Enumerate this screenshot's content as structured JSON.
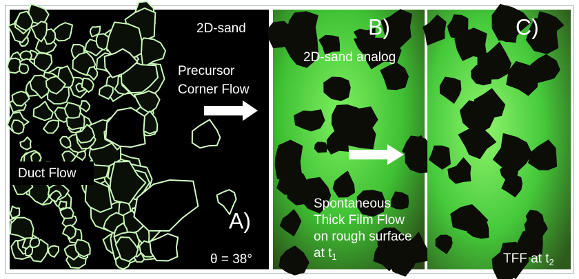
{
  "panels": [
    {
      "label": "A)",
      "title": "2D-sand",
      "annotation_lines": [
        "Precursor",
        "Corner Flow"
      ],
      "inset_label": "Duct Flow",
      "angle": "θ = 38°"
    },
    {
      "label": "B)",
      "title": "2D-sand analog",
      "caption_lines": [
        "Spontaneous",
        "Thick Film Flow",
        "on rough surface"
      ],
      "caption_time": {
        "text": "at t",
        "subscript": "1"
      }
    },
    {
      "label": "C)",
      "caption_time": {
        "text": "TFF at t",
        "subscript": "2"
      }
    }
  ]
}
